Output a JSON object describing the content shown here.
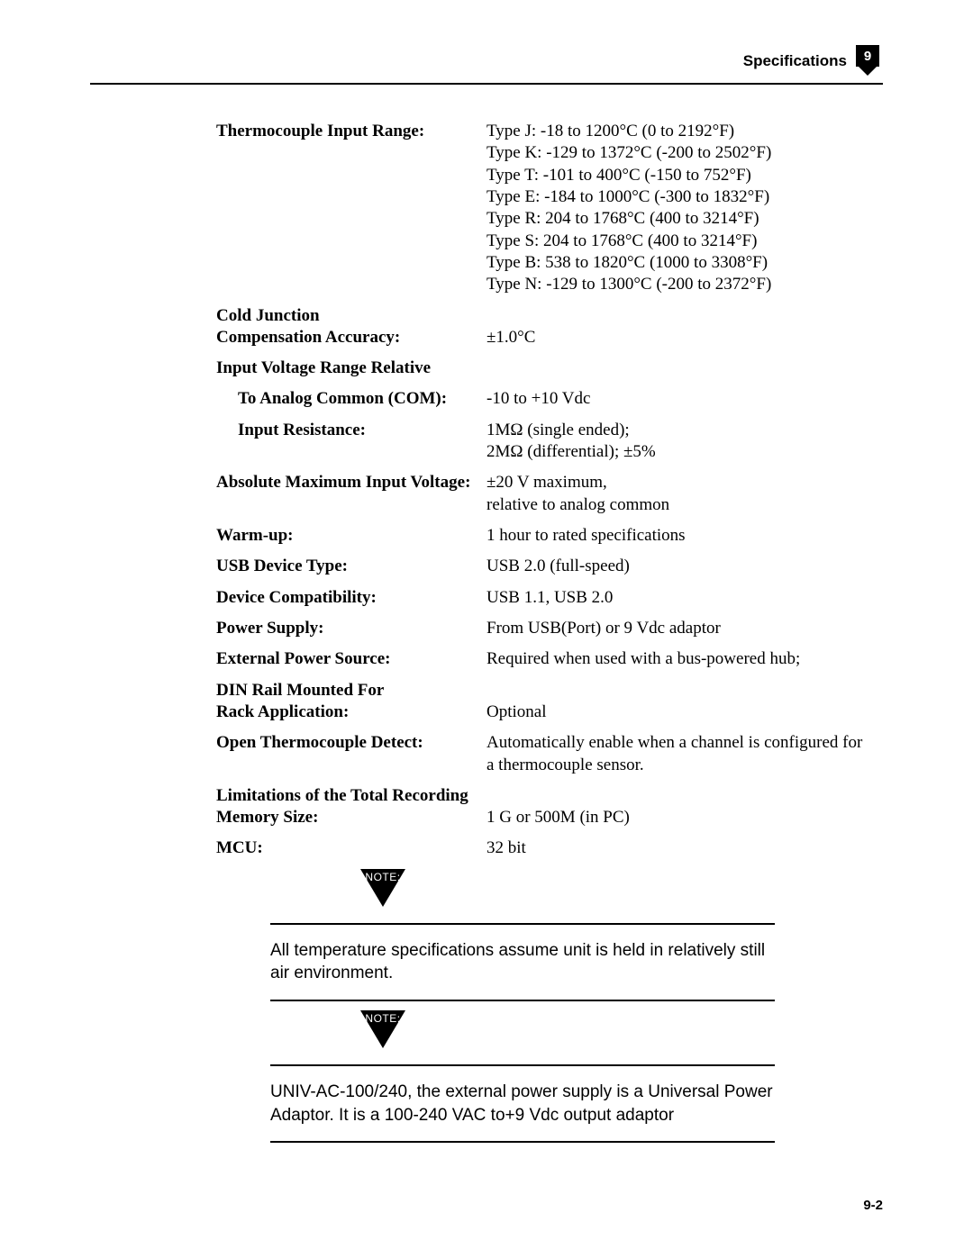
{
  "header": {
    "title": "Specifications",
    "chapter": "9"
  },
  "specs": [
    {
      "label": "Thermocouple Input Range:",
      "value": "Type J: -18 to 1200°C (0 to 2192°F)\nType K: -129 to 1372°C (-200 to 2502°F)\nType T: -101 to 400°C (-150 to 752°F)\nType E: -184 to 1000°C (-300 to 1832°F)\nType R: 204 to 1768°C (400 to 3214°F)\nType S: 204 to 1768°C (400 to 3214°F)\nType B: 538 to 1820°C (1000 to 3308°F)\nType N: -129 to 1300°C (-200 to 2372°F)"
    },
    {
      "label": "Cold Junction\nCompensation Accuracy:",
      "value": "±1.0°C"
    },
    {
      "label": "Input Voltage Range Relative",
      "value": ""
    },
    {
      "label": "To Analog Common (COM):",
      "indent": 1,
      "value": "-10 to +10 Vdc"
    },
    {
      "label": "Input Resistance:",
      "indent": 1,
      "value": "1MΩ (single ended);\n2MΩ (differential); ±5%"
    },
    {
      "label": "Absolute Maximum Input Voltage:",
      "value": "±20 V maximum,\nrelative to analog common"
    },
    {
      "label": "Warm-up:",
      "value": "1 hour to rated specifications"
    },
    {
      "label": "USB Device Type:",
      "value": "USB 2.0 (full-speed)"
    },
    {
      "label": "Device Compatibility:",
      "value": "USB 1.1, USB 2.0"
    },
    {
      "label": "Power Supply:",
      "value": "From USB(Port) or 9 Vdc adaptor"
    },
    {
      "label": "External Power Source:",
      "value": "Required when used with a bus-powered hub;"
    },
    {
      "label": "DIN Rail Mounted For\nRack Application:",
      "value": "Optional"
    },
    {
      "label": "Open Thermocouple Detect:",
      "value": "Automatically enable when a channel is configured for a thermocouple sensor."
    },
    {
      "label": "Limitations of the Total Recording\nMemory Size:",
      "value": "1 G or 500M (in PC)"
    },
    {
      "label": "MCU:",
      "value": "32 bit"
    }
  ],
  "notes": [
    {
      "tag": "NOTE:",
      "body": "All temperature specifications assume unit is held in relatively still air environment."
    },
    {
      "tag": "NOTE:",
      "body": "UNIV-AC-100/240, the external power supply is a Universal Power Adaptor. It is a 100-240 VAC to+9 Vdc output adaptor"
    }
  ],
  "footer": {
    "page": "9-2"
  }
}
